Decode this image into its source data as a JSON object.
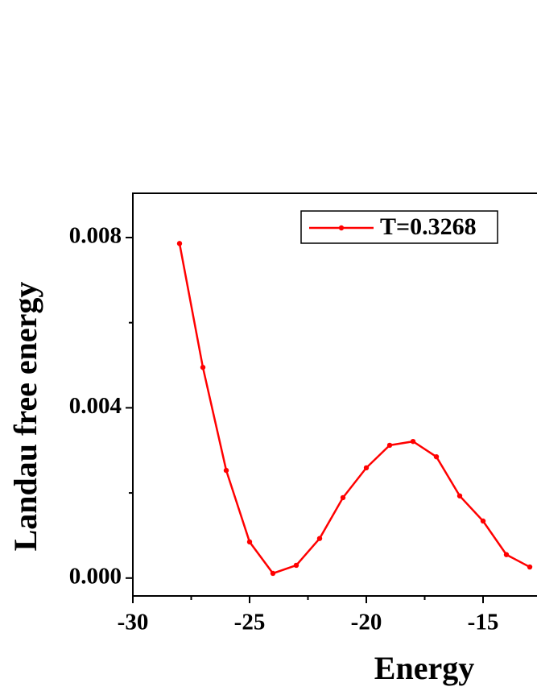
{
  "chart_data": {
    "type": "line",
    "x_label": "Energy",
    "y_label": "Landau free energy",
    "x": [
      -28,
      -27,
      -26,
      -25,
      -24,
      -23,
      -22,
      -21,
      -20,
      -19,
      -18,
      -17,
      -16,
      -15,
      -14,
      -13
    ],
    "series": [
      {
        "name": "T=0.3268",
        "color": "#ff0000",
        "values": [
          0.00786,
          0.00495,
          0.00253,
          0.00085,
          0.00011,
          0.0003,
          0.00093,
          0.00189,
          0.00259,
          0.00312,
          0.00321,
          0.00285,
          0.00193,
          0.00134,
          0.00055,
          0.00026
        ]
      }
    ],
    "xlim": [
      -30,
      -12.69
    ],
    "ylim": [
      -0.00042,
      0.00904
    ],
    "xticks": [
      -30,
      -25,
      -20,
      -15
    ],
    "x_minor_ticks": [
      -27.5,
      -22.5,
      -17.5
    ],
    "yticks": [
      {
        "value": 0,
        "label": "0.000"
      },
      {
        "value": 0.004,
        "label": "0.004"
      },
      {
        "value": 0.008,
        "label": "0.008"
      }
    ],
    "y_minor_ticks": [
      0.002,
      0.006
    ],
    "legend": "upper center"
  }
}
